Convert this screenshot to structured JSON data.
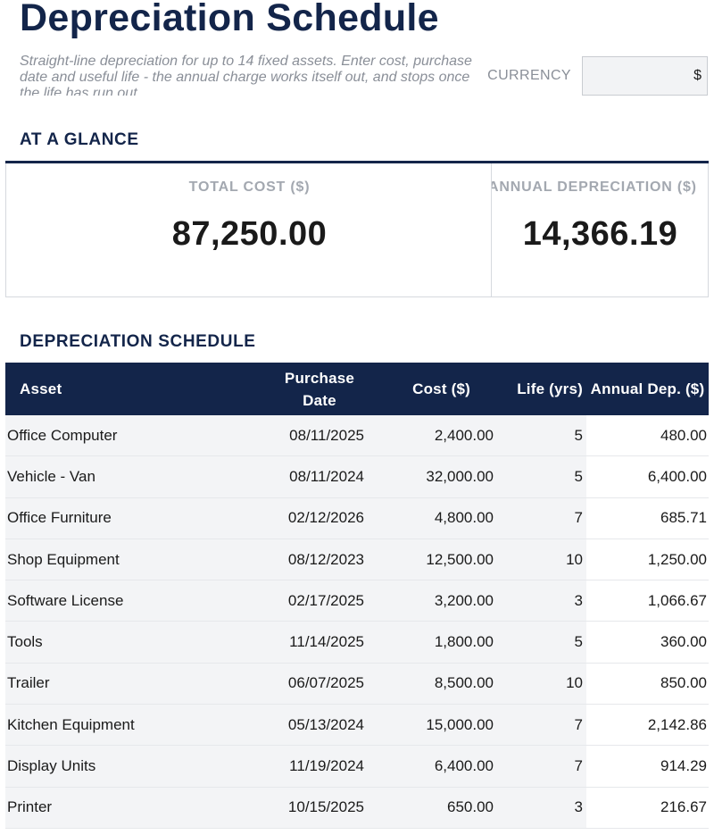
{
  "header": {
    "title": "Depreciation Schedule",
    "subtitle": "Straight-line depreciation for up to 14 fixed assets. Enter cost, purchase date and useful life - the annual charge works itself out, and stops once the life has run out",
    "currency_label": "CURRENCY",
    "currency_value": "$"
  },
  "glance": {
    "heading": "AT A GLANCE",
    "total_cost_label": "TOTAL COST ($)",
    "total_cost_value": "87,250.00",
    "annual_dep_label": "ANNUAL DEPRECIATION ($)",
    "annual_dep_value": "14,366.19"
  },
  "schedule": {
    "heading": "DEPRECIATION SCHEDULE",
    "columns": {
      "asset": "Asset",
      "purchase_date": "Purchase Date",
      "cost": "Cost ($)",
      "life": "Life (yrs)",
      "annual_dep": "Annual Dep. ($)"
    },
    "rows": [
      {
        "asset": "Office Computer",
        "date": "08/11/2025",
        "cost": "2,400.00",
        "life": "5",
        "dep": "480.00"
      },
      {
        "asset": "Vehicle - Van",
        "date": "08/11/2024",
        "cost": "32,000.00",
        "life": "5",
        "dep": "6,400.00"
      },
      {
        "asset": "Office Furniture",
        "date": "02/12/2026",
        "cost": "4,800.00",
        "life": "7",
        "dep": "685.71"
      },
      {
        "asset": "Shop Equipment",
        "date": "08/12/2023",
        "cost": "12,500.00",
        "life": "10",
        "dep": "1,250.00"
      },
      {
        "asset": "Software License",
        "date": "02/17/2025",
        "cost": "3,200.00",
        "life": "3",
        "dep": "1,066.67"
      },
      {
        "asset": "Tools",
        "date": "11/14/2025",
        "cost": "1,800.00",
        "life": "5",
        "dep": "360.00"
      },
      {
        "asset": "Trailer",
        "date": "06/07/2025",
        "cost": "8,500.00",
        "life": "10",
        "dep": "850.00"
      },
      {
        "asset": "Kitchen Equipment",
        "date": "05/13/2024",
        "cost": "15,000.00",
        "life": "7",
        "dep": "2,142.86"
      },
      {
        "asset": "Display Units",
        "date": "11/19/2024",
        "cost": "6,400.00",
        "life": "7",
        "dep": "914.29"
      },
      {
        "asset": "Printer",
        "date": "10/15/2025",
        "cost": "650.00",
        "life": "3",
        "dep": "216.67"
      }
    ]
  }
}
